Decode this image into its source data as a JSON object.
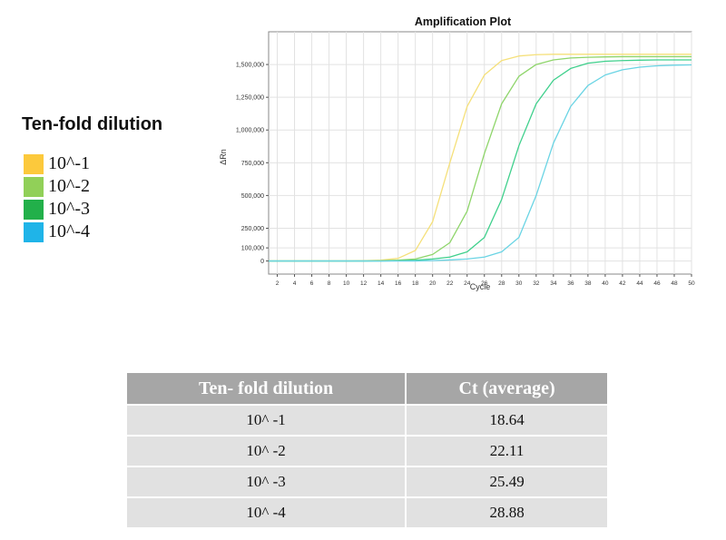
{
  "legend": {
    "title": "Ten-fold dilution",
    "items": [
      {
        "label": "10^-1",
        "color": "#fcc93c"
      },
      {
        "label": "10^-2",
        "color": "#91d058"
      },
      {
        "label": "10^-3",
        "color": "#22b04a"
      },
      {
        "label": "10^-4",
        "color": "#1fb4e8"
      }
    ]
  },
  "chart_data": {
    "type": "line",
    "title": "Amplification Plot",
    "xlabel": "Cycle",
    "ylabel": "ΔRn",
    "xlim": [
      1,
      50
    ],
    "ylim": [
      -100000,
      1750000
    ],
    "xticks": [
      2,
      4,
      6,
      8,
      10,
      12,
      14,
      16,
      18,
      20,
      22,
      24,
      26,
      28,
      30,
      32,
      34,
      36,
      38,
      40,
      42,
      44,
      46,
      48,
      50
    ],
    "yticks": [
      0,
      100000,
      250000,
      500000,
      750000,
      1000000,
      1250000,
      1500000
    ],
    "ytick_labels": [
      "0",
      "100,000",
      "250,000",
      "500,000",
      "750,000",
      "1,000,000",
      "1,250,000",
      "1,500,000"
    ],
    "grid": true,
    "x": [
      2,
      4,
      6,
      8,
      10,
      12,
      14,
      16,
      18,
      20,
      22,
      24,
      26,
      28,
      30,
      32,
      34,
      36,
      38,
      40,
      42,
      44,
      46,
      48,
      50
    ],
    "series": [
      {
        "name": "10^-1",
        "color": "#f5e07a",
        "values": [
          0,
          0,
          0,
          0,
          0,
          2000,
          6000,
          20000,
          80000,
          300000,
          750000,
          1180000,
          1420000,
          1530000,
          1565000,
          1575000,
          1578000,
          1578000,
          1578000,
          1578000,
          1578000,
          1578000,
          1578000,
          1578000,
          1578000
        ]
      },
      {
        "name": "10^-2",
        "color": "#8ed56a",
        "values": [
          0,
          0,
          0,
          0,
          0,
          0,
          2000,
          6000,
          15000,
          50000,
          140000,
          380000,
          820000,
          1200000,
          1410000,
          1500000,
          1535000,
          1550000,
          1555000,
          1558000,
          1560000,
          1560000,
          1560000,
          1560000,
          1560000
        ]
      },
      {
        "name": "10^-3",
        "color": "#3fd08c",
        "values": [
          0,
          0,
          0,
          0,
          0,
          0,
          0,
          2000,
          6000,
          15000,
          30000,
          70000,
          180000,
          470000,
          880000,
          1200000,
          1380000,
          1470000,
          1510000,
          1525000,
          1530000,
          1533000,
          1535000,
          1535000,
          1535000
        ]
      },
      {
        "name": "10^-4",
        "color": "#6ad4e4",
        "values": [
          0,
          0,
          0,
          0,
          0,
          0,
          0,
          0,
          0,
          3000,
          8000,
          15000,
          30000,
          70000,
          180000,
          500000,
          900000,
          1180000,
          1340000,
          1420000,
          1460000,
          1480000,
          1490000,
          1495000,
          1497000
        ]
      }
    ]
  },
  "table": {
    "headers": [
      "Ten- fold dilution",
      "Ct (average)"
    ],
    "rows": [
      [
        "10^ -1",
        "18.64"
      ],
      [
        "10^ -2",
        "22.11"
      ],
      [
        "10^ -3",
        "25.49"
      ],
      [
        "10^ -4",
        "28.88"
      ]
    ]
  }
}
